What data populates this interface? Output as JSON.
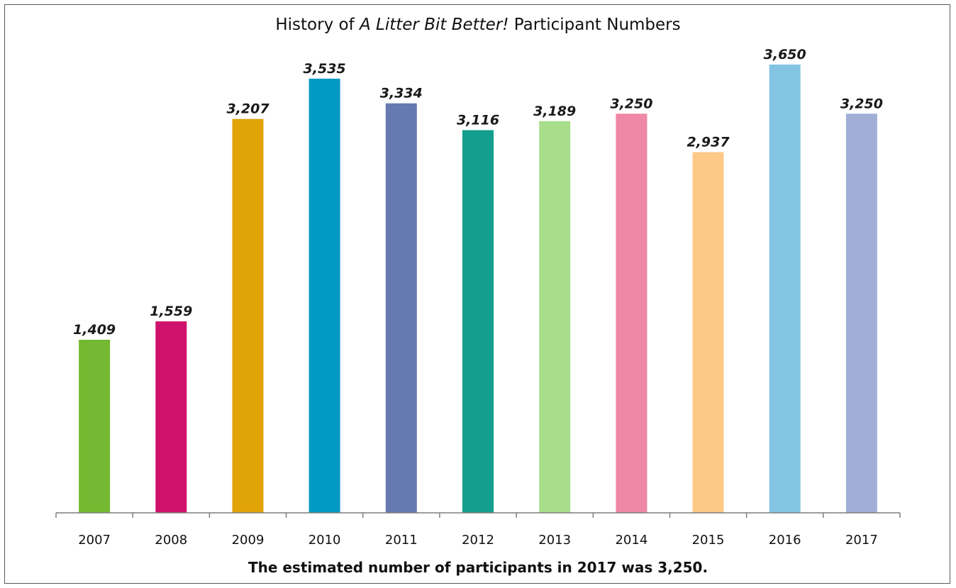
{
  "title": {
    "prefix": "History of ",
    "emphasis": "A Litter Bit Better!",
    "suffix": " Participant Numbers"
  },
  "footnote": "The estimated number of participants in 2017 was 3,250.",
  "chart_data": {
    "type": "bar",
    "title": "History of A Litter Bit Better! Participant Numbers",
    "categories": [
      "2007",
      "2008",
      "2009",
      "2010",
      "2011",
      "2012",
      "2013",
      "2014",
      "2015",
      "2016",
      "2017"
    ],
    "values": [
      1409,
      1559,
      3207,
      3535,
      3334,
      3116,
      3189,
      3250,
      2937,
      3650,
      3250
    ],
    "value_labels": [
      "1,409",
      "1,559",
      "3,207",
      "3,535",
      "3,334",
      "3,116",
      "3,189",
      "3,250",
      "2,937",
      "3,650",
      "3,250"
    ],
    "colors": [
      "#74b931",
      "#d0116b",
      "#e0a308",
      "#009ac4",
      "#6679b1",
      "#149e8d",
      "#a8dd8c",
      "#ef87a6",
      "#fdc986",
      "#84c4e3",
      "#a1afd7"
    ],
    "xlabel": "",
    "ylabel": "",
    "ylim": [
      0,
      3650
    ],
    "grid": false,
    "legend": "none"
  }
}
